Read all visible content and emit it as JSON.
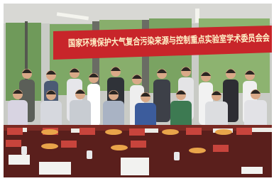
{
  "banner": {
    "text": "国家环境保护大气复合污染来源与控制重点实验室学术委员会会"
  }
}
